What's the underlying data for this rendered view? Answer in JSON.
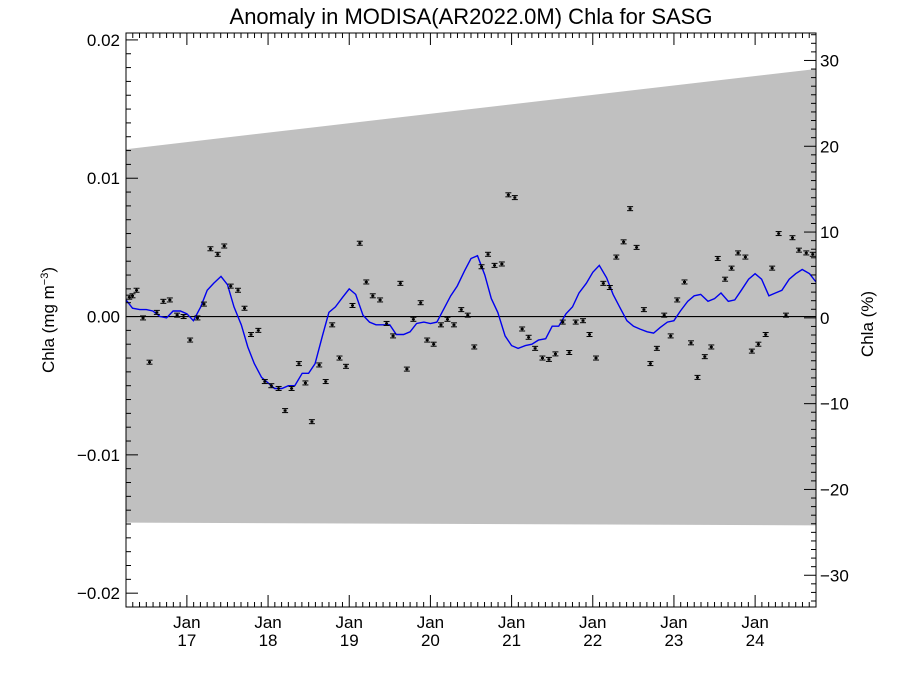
{
  "chart_data": {
    "type": "line",
    "title": "Anomaly in MODISA(AR2022.0M) Chla for SASG",
    "ylabel_left": "Chla (mg m",
    "ylabel_left_sup": "−3",
    "ylabel_left_close": ")",
    "ylabel_right": "Chla (%)",
    "xlim": [
      2016.25,
      2024.75
    ],
    "ylim": [
      -0.021,
      0.0205
    ],
    "ylim_right": [
      -33.7,
      33.2
    ],
    "grid": false,
    "x_ticks": [
      {
        "x": 2017.0,
        "month": "Jan",
        "year": "17"
      },
      {
        "x": 2018.0,
        "month": "Jan",
        "year": "18"
      },
      {
        "x": 2019.0,
        "month": "Jan",
        "year": "19"
      },
      {
        "x": 2020.0,
        "month": "Jan",
        "year": "20"
      },
      {
        "x": 2021.0,
        "month": "Jan",
        "year": "21"
      },
      {
        "x": 2022.0,
        "month": "Jan",
        "year": "22"
      },
      {
        "x": 2023.0,
        "month": "Jan",
        "year": "23"
      },
      {
        "x": 2024.0,
        "month": "Jan",
        "year": "24"
      }
    ],
    "y_ticks_left": [
      {
        "v": 0.02,
        "label": "0.02"
      },
      {
        "v": 0.01,
        "label": "0.01"
      },
      {
        "v": 0.0,
        "label": "0.00"
      },
      {
        "v": -0.01,
        "label": "−0.01"
      },
      {
        "v": -0.02,
        "label": "−0.02"
      }
    ],
    "y_ticks_right": [
      {
        "v": 30,
        "label": "30"
      },
      {
        "v": 20,
        "label": "20"
      },
      {
        "v": 10,
        "label": "10"
      },
      {
        "v": 0,
        "label": "0"
      },
      {
        "v": -10,
        "label": "−10"
      },
      {
        "v": -20,
        "label": "−20"
      },
      {
        "v": -30,
        "label": "−30"
      }
    ],
    "band": {
      "color": "#c0c0c0",
      "x": [
        2016.25,
        2024.75
      ],
      "upper": [
        0.0121,
        0.0179
      ],
      "lower": [
        -0.0149,
        -0.0151
      ]
    },
    "zero_line": 0.0,
    "series": [
      {
        "kind": "monthly_points",
        "color": "#000000",
        "x": [
          2016.29,
          2016.33,
          2016.38,
          2016.46,
          2016.54,
          2016.63,
          2016.71,
          2016.79,
          2016.88,
          2016.96,
          2017.04,
          2017.13,
          2017.21,
          2017.29,
          2017.38,
          2017.46,
          2017.54,
          2017.63,
          2017.71,
          2017.79,
          2017.88,
          2017.96,
          2018.04,
          2018.13,
          2018.21,
          2018.29,
          2018.38,
          2018.46,
          2018.54,
          2018.63,
          2018.71,
          2018.79,
          2018.88,
          2018.96,
          2019.04,
          2019.13,
          2019.21,
          2019.29,
          2019.38,
          2019.46,
          2019.54,
          2019.63,
          2019.71,
          2019.79,
          2019.88,
          2019.96,
          2020.04,
          2020.13,
          2020.21,
          2020.29,
          2020.38,
          2020.46,
          2020.54,
          2020.63,
          2020.71,
          2020.79,
          2020.88,
          2020.96,
          2021.04,
          2021.13,
          2021.21,
          2021.29,
          2021.38,
          2021.46,
          2021.54,
          2021.63,
          2021.71,
          2021.79,
          2021.88,
          2021.96,
          2022.04,
          2022.13,
          2022.21,
          2022.29,
          2022.38,
          2022.46,
          2022.54,
          2022.63,
          2022.71,
          2022.79,
          2022.88,
          2022.96,
          2023.04,
          2023.13,
          2023.21,
          2023.29,
          2023.38,
          2023.46,
          2023.54,
          2023.63,
          2023.71,
          2023.79,
          2023.88,
          2023.96,
          2024.04,
          2024.13,
          2024.21,
          2024.29,
          2024.38,
          2024.46,
          2024.54,
          2024.63,
          2024.71
        ],
        "y": [
          0.0014,
          0.0015,
          0.0019,
          -0.0001,
          -0.0033,
          0.0003,
          0.0011,
          0.0012,
          0.0001,
          0.0,
          -0.0017,
          -0.0001,
          0.0009,
          0.0049,
          0.0045,
          0.0051,
          0.0022,
          0.0019,
          0.0006,
          -0.0013,
          -0.001,
          -0.0047,
          -0.005,
          -0.0052,
          -0.0068,
          -0.0052,
          -0.0034,
          -0.0048,
          -0.0076,
          -0.0035,
          -0.0047,
          -0.0006,
          -0.003,
          -0.0036,
          0.0008,
          0.0053,
          0.0025,
          0.0015,
          0.0012,
          -0.0005,
          -0.0014,
          0.0024,
          -0.0038,
          -0.0002,
          0.001,
          -0.0017,
          -0.002,
          -0.0006,
          -0.0002,
          -0.0006,
          0.0005,
          0.0001,
          -0.0022,
          0.0036,
          0.0045,
          0.0037,
          0.0038,
          0.0088,
          0.0086,
          -0.0009,
          -0.0015,
          -0.0023,
          -0.003,
          -0.0031,
          -0.0027,
          -0.0004,
          -0.0026,
          -0.0004,
          -0.0003,
          -0.0013,
          -0.003,
          0.0024,
          0.0021,
          0.0043,
          0.0054,
          0.0078,
          0.005,
          0.0005,
          -0.0034,
          -0.0023,
          0.0001,
          -0.0014,
          0.0012,
          0.0025,
          -0.0019,
          -0.0044,
          -0.0029,
          -0.0022,
          0.0042,
          0.0027,
          0.0035,
          0.0046,
          0.0043,
          -0.0025,
          -0.002,
          -0.0013,
          0.0035,
          0.006,
          0.0001,
          0.0057,
          0.0048,
          0.0046,
          0.0045
        ]
      },
      {
        "kind": "smoothed_line",
        "color": "#0000ee",
        "x": [
          2016.25,
          2016.33,
          2016.42,
          2016.5,
          2016.58,
          2016.67,
          2016.75,
          2016.83,
          2016.92,
          2017.0,
          2017.08,
          2017.17,
          2017.25,
          2017.33,
          2017.42,
          2017.5,
          2017.58,
          2017.67,
          2017.75,
          2017.83,
          2017.92,
          2018.0,
          2018.08,
          2018.17,
          2018.25,
          2018.33,
          2018.42,
          2018.5,
          2018.58,
          2018.67,
          2018.75,
          2018.83,
          2018.92,
          2019.0,
          2019.08,
          2019.17,
          2019.25,
          2019.33,
          2019.42,
          2019.5,
          2019.58,
          2019.67,
          2019.75,
          2019.83,
          2019.92,
          2020.0,
          2020.08,
          2020.17,
          2020.25,
          2020.33,
          2020.42,
          2020.5,
          2020.58,
          2020.67,
          2020.75,
          2020.83,
          2020.92,
          2021.0,
          2021.08,
          2021.17,
          2021.25,
          2021.33,
          2021.42,
          2021.5,
          2021.58,
          2021.67,
          2021.75,
          2021.83,
          2021.92,
          2022.0,
          2022.08,
          2022.17,
          2022.25,
          2022.33,
          2022.42,
          2022.5,
          2022.58,
          2022.67,
          2022.75,
          2022.83,
          2022.92,
          2023.0,
          2023.08,
          2023.17,
          2023.25,
          2023.33,
          2023.42,
          2023.5,
          2023.58,
          2023.67,
          2023.75,
          2023.83,
          2023.92,
          2024.0,
          2024.08,
          2024.17,
          2024.25,
          2024.33,
          2024.42,
          2024.5,
          2024.58,
          2024.67,
          2024.75
        ],
        "y": [
          0.0012,
          0.0006,
          0.0005,
          0.0005,
          0.0004,
          0.0,
          -0.0001,
          0.0004,
          0.0004,
          0.0002,
          -0.0003,
          0.0007,
          0.0019,
          0.0024,
          0.0029,
          0.0023,
          0.0007,
          -0.0006,
          -0.0022,
          -0.0034,
          -0.0044,
          -0.0048,
          -0.0052,
          -0.0052,
          -0.005,
          -0.005,
          -0.0041,
          -0.0041,
          -0.0034,
          -0.0014,
          0.0003,
          0.0007,
          0.0014,
          0.002,
          0.0016,
          0.0001,
          -0.0004,
          -0.0006,
          -0.0006,
          -0.0006,
          -0.0013,
          -0.0013,
          -0.0011,
          -0.0005,
          -0.0004,
          -0.0005,
          -0.0004,
          0.0006,
          0.0015,
          0.0022,
          0.0033,
          0.0042,
          0.0044,
          0.003,
          0.0013,
          0.0003,
          -0.0014,
          -0.0021,
          -0.0023,
          -0.0021,
          -0.002,
          -0.0017,
          -0.0016,
          -0.0007,
          -0.0007,
          0.0002,
          0.0007,
          0.0017,
          0.0024,
          0.0032,
          0.0037,
          0.0028,
          0.0016,
          0.0007,
          -0.0003,
          -0.0007,
          -0.0009,
          -0.0011,
          -0.0012,
          -0.0008,
          -0.0004,
          -0.0003,
          0.0004,
          0.0011,
          0.0015,
          0.0016,
          0.0011,
          0.0013,
          0.0017,
          0.0011,
          0.0012,
          0.0019,
          0.0027,
          0.0031,
          0.0027,
          0.0015,
          0.0017,
          0.0019,
          0.0027,
          0.0031,
          0.0034,
          0.0031,
          0.0025
        ]
      }
    ]
  }
}
